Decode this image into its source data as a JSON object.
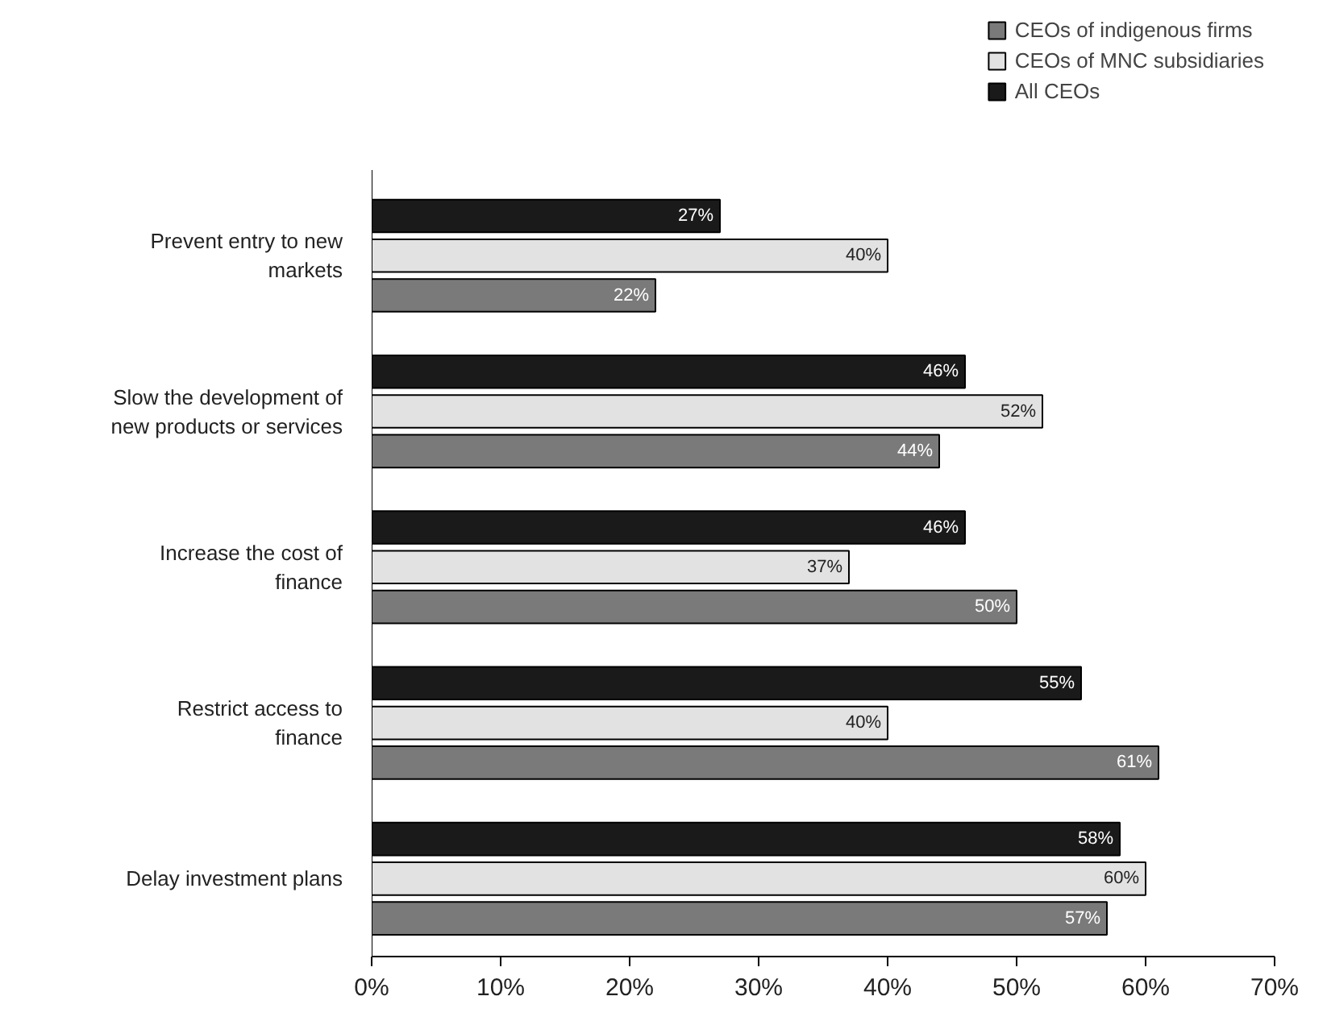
{
  "chart_data": {
    "type": "bar",
    "orientation": "horizontal",
    "categories": [
      "Prevent entry to new markets",
      "Slow the development of new products or services",
      "Increase the cost of finance",
      "Restrict access to finance",
      "Delay investment plans"
    ],
    "series": [
      {
        "name": "CEOs of indigenous firms",
        "color": "#7a7a7a",
        "values": [
          22,
          44,
          50,
          61,
          57
        ],
        "value_labels": [
          "22%",
          "44%",
          "50%",
          "61%",
          "57%"
        ]
      },
      {
        "name": "CEOs of MNC subsidiaries",
        "color": "#e2e2e2",
        "values": [
          40,
          52,
          37,
          40,
          60
        ],
        "value_labels": [
          "40%",
          "52%",
          "37%",
          "40%",
          "60%"
        ]
      },
      {
        "name": "All CEOs",
        "color": "#1a1a1a",
        "values": [
          27,
          46,
          46,
          55,
          58
        ],
        "value_labels": [
          "27%",
          "46%",
          "46%",
          "55%",
          "58%"
        ]
      }
    ],
    "xlim": [
      0,
      70
    ],
    "xticks": [
      {
        "value": 0,
        "label": "0%"
      },
      {
        "value": 10,
        "label": "10%"
      },
      {
        "value": 20,
        "label": "20%"
      },
      {
        "value": 30,
        "label": "30%"
      },
      {
        "value": 40,
        "label": "40%"
      },
      {
        "value": 50,
        "label": "50%"
      },
      {
        "value": 60,
        "label": "60%"
      },
      {
        "value": 70,
        "label": "70%"
      }
    ],
    "grid": false,
    "legend": "top right"
  }
}
